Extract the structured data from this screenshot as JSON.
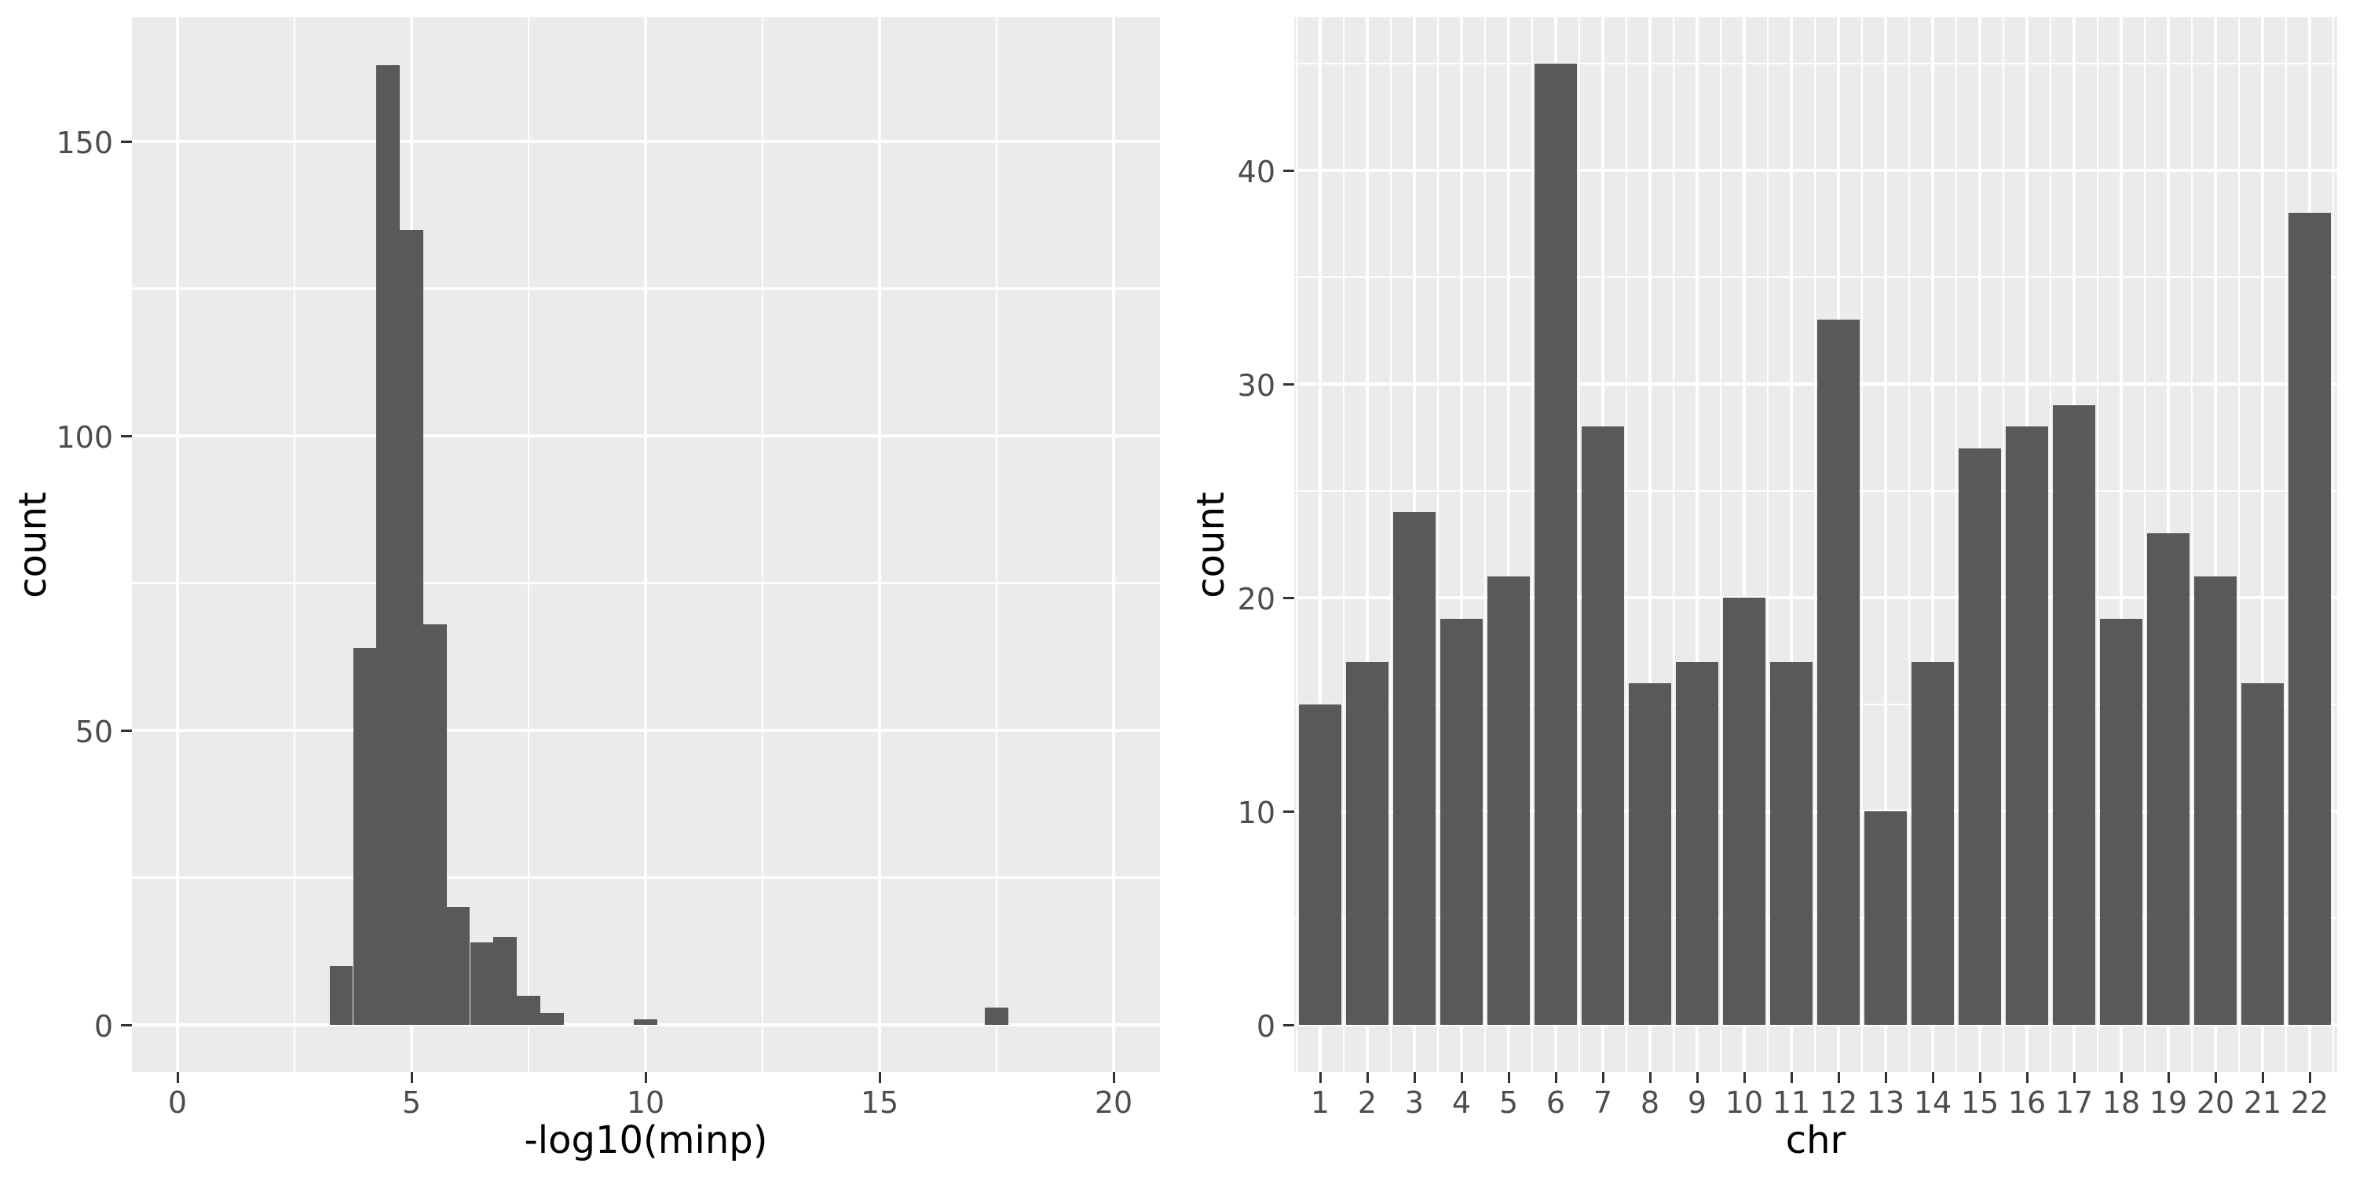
{
  "figure": {
    "background": "#FFFFFF",
    "panel_background": "#EBEBEB",
    "bar_color": "#595959",
    "grid_major_color": "#FFFFFF",
    "grid_minor_color": "#FFFFFF",
    "tick_label_color": "#4D4D4D",
    "tick_mark_color": "#333333",
    "axis_title_color": "#000000"
  },
  "chart_data": [
    {
      "type": "bar",
      "subtype": "histogram",
      "title": "",
      "xlabel": "-log10(minp)",
      "ylabel": "count",
      "x_ticks": [
        0,
        5,
        10,
        15,
        20
      ],
      "y_ticks": [
        0,
        50,
        100,
        150
      ],
      "xlim": [
        -1.0,
        21.0
      ],
      "ylim": [
        0,
        171
      ],
      "grid": true,
      "legend": false,
      "bin_width": 0.5,
      "bins": [
        {
          "x0": 3.25,
          "x1": 3.75,
          "count": 10
        },
        {
          "x0": 3.75,
          "x1": 4.25,
          "count": 64
        },
        {
          "x0": 4.25,
          "x1": 4.75,
          "count": 163
        },
        {
          "x0": 4.75,
          "x1": 5.25,
          "count": 135
        },
        {
          "x0": 5.25,
          "x1": 5.75,
          "count": 68
        },
        {
          "x0": 5.75,
          "x1": 6.25,
          "count": 20
        },
        {
          "x0": 6.25,
          "x1": 6.75,
          "count": 14
        },
        {
          "x0": 6.75,
          "x1": 7.25,
          "count": 15
        },
        {
          "x0": 7.25,
          "x1": 7.75,
          "count": 5
        },
        {
          "x0": 7.75,
          "x1": 8.25,
          "count": 2
        },
        {
          "x0": 9.75,
          "x1": 10.25,
          "count": 1
        },
        {
          "x0": 17.25,
          "x1": 17.75,
          "count": 3
        }
      ]
    },
    {
      "type": "bar",
      "subtype": "categorical",
      "title": "",
      "xlabel": "chr",
      "ylabel": "count",
      "categories": [
        "1",
        "2",
        "3",
        "4",
        "5",
        "6",
        "7",
        "8",
        "9",
        "10",
        "11",
        "12",
        "13",
        "14",
        "15",
        "16",
        "17",
        "18",
        "19",
        "20",
        "21",
        "22"
      ],
      "values": [
        15,
        17,
        24,
        19,
        21,
        45,
        28,
        16,
        17,
        20,
        17,
        33,
        10,
        17,
        27,
        28,
        29,
        19,
        23,
        21,
        16,
        38
      ],
      "y_ticks": [
        0,
        10,
        20,
        30,
        40
      ],
      "ylim": [
        0,
        47.2
      ],
      "grid": true,
      "legend": false
    }
  ]
}
